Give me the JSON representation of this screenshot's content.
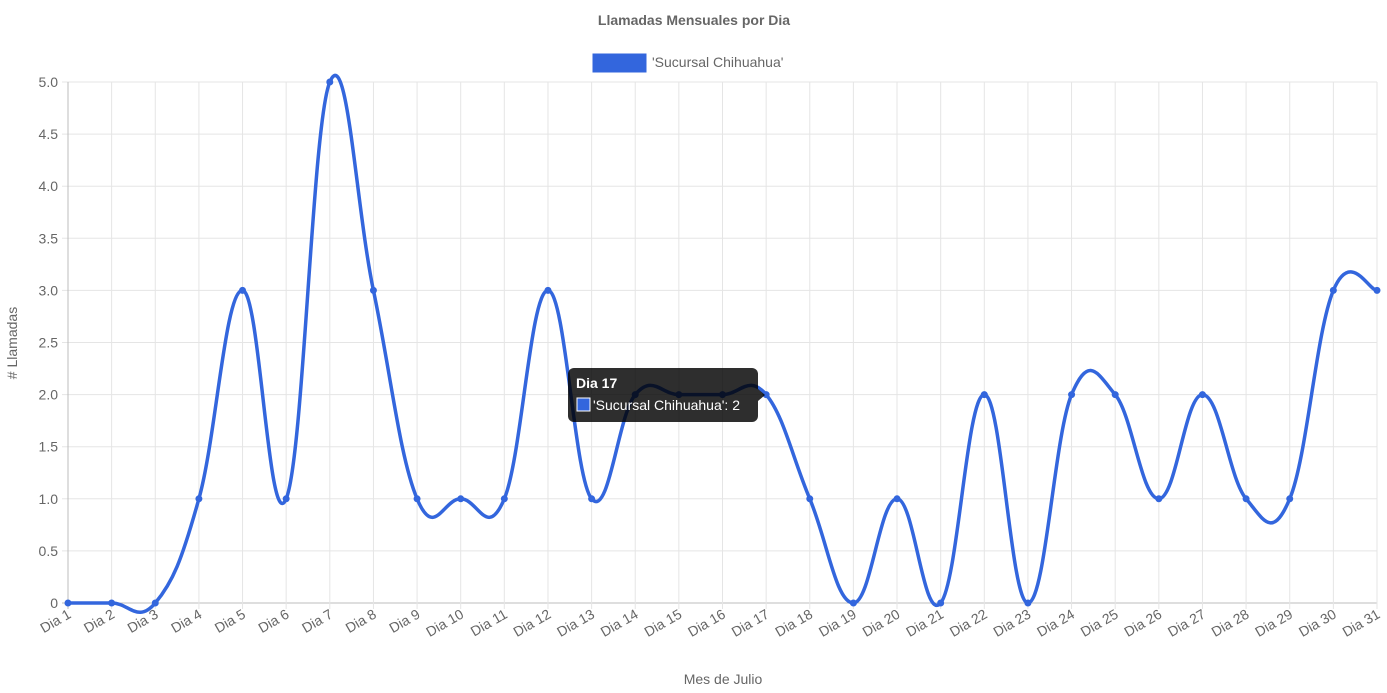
{
  "chart_data": {
    "type": "line",
    "title": "Llamadas Mensuales por Dia",
    "xlabel": "Mes de Julio",
    "ylabel": "# Llamadas",
    "categories": [
      "Dia 1",
      "Dia 2",
      "Dia 3",
      "Dia 4",
      "Dia 5",
      "Dia 6",
      "Dia 7",
      "Dia 8",
      "Dia 9",
      "Dia 10",
      "Dia 11",
      "Dia 12",
      "Dia 13",
      "Dia 14",
      "Dia 15",
      "Dia 16",
      "Dia 17",
      "Dia 18",
      "Dia 19",
      "Dia 20",
      "Dia 21",
      "Dia 22",
      "Dia 23",
      "Dia 24",
      "Dia 25",
      "Dia 26",
      "Dia 27",
      "Dia 28",
      "Dia 29",
      "Dia 30",
      "Dia 31"
    ],
    "series": [
      {
        "name": "'Sucursal Chihuahua'",
        "color": "#3366dd",
        "values": [
          0,
          0,
          0,
          1,
          3,
          1,
          5,
          3,
          1,
          1,
          1,
          3,
          1,
          2,
          2,
          2,
          2,
          1,
          0,
          1,
          0,
          2,
          0,
          2,
          2,
          1,
          2,
          1,
          1,
          3,
          3
        ]
      }
    ],
    "ylim": [
      0,
      5
    ],
    "yticks": [
      "0",
      "0.5",
      "1.0",
      "1.5",
      "2.0",
      "2.5",
      "3.0",
      "3.5",
      "4.0",
      "4.5",
      "5.0"
    ],
    "grid": true,
    "legend_position": "top",
    "tooltip": {
      "title": "Dia 17",
      "text": "'Sucursal Chihuahua': 2"
    }
  }
}
